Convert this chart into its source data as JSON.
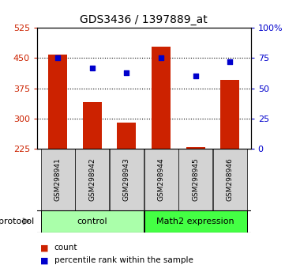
{
  "title": "GDS3436 / 1397889_at",
  "samples": [
    "GSM298941",
    "GSM298942",
    "GSM298943",
    "GSM298944",
    "GSM298945",
    "GSM298946"
  ],
  "count_values": [
    458,
    340,
    290,
    478,
    228,
    395
  ],
  "percentile_values": [
    75,
    67,
    63,
    75,
    60,
    72
  ],
  "ylim_left": [
    225,
    525
  ],
  "ylim_right": [
    0,
    100
  ],
  "yticks_left": [
    225,
    300,
    375,
    450,
    525
  ],
  "yticks_right": [
    0,
    25,
    50,
    75,
    100
  ],
  "ytick_labels_right": [
    "0",
    "25",
    "50",
    "75",
    "100%"
  ],
  "grid_yticks": [
    300,
    375,
    450
  ],
  "bar_color": "#cc2200",
  "scatter_color": "#0000cc",
  "groups": [
    {
      "label": "control",
      "indices": [
        0,
        1,
        2
      ],
      "color": "#aaffaa"
    },
    {
      "label": "Math2 expression",
      "indices": [
        3,
        4,
        5
      ],
      "color": "#44ff44"
    }
  ],
  "protocol_label": "protocol",
  "legend_count_label": "count",
  "legend_percentile_label": "percentile rank within the sample",
  "bar_width": 0.55,
  "background_color": "#ffffff",
  "tick_color_left": "#cc2200",
  "tick_color_right": "#0000cc",
  "sample_box_color": "#d3d3d3",
  "n_samples": 6
}
